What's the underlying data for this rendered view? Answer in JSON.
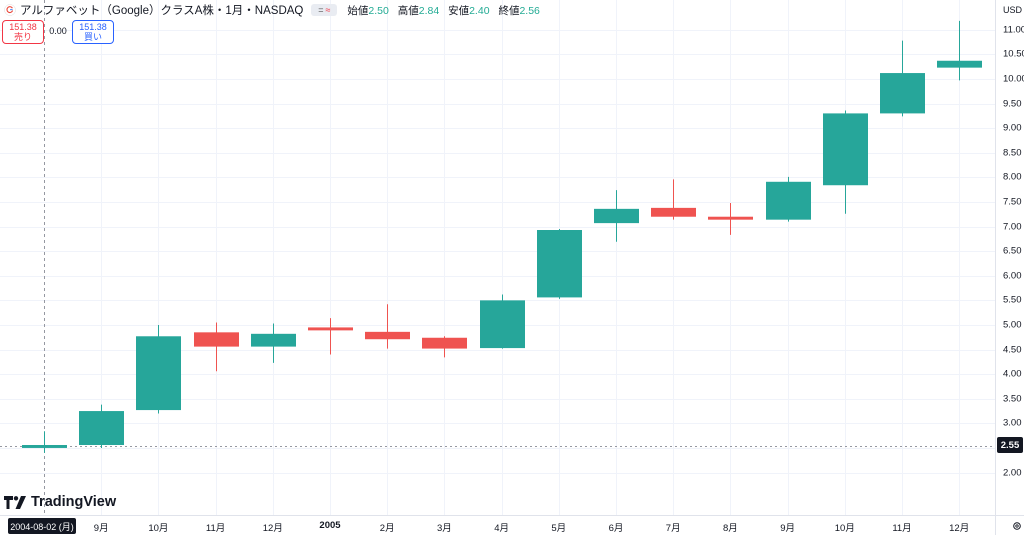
{
  "header": {
    "title": "アルファベット（Google）クラスA株・1月・NASDAQ",
    "chip_symbol": "=",
    "chip_approx": "≈",
    "ohlc": {
      "open_label": "始値",
      "open_value": "2.50",
      "high_label": "高値",
      "high_value": "2.84",
      "low_label": "安値",
      "low_value": "2.40",
      "close_label": "終値",
      "close_value": "2.56"
    }
  },
  "trade": {
    "sell_price": "151.38",
    "sell_label": "売り",
    "spread": "0.00",
    "buy_price": "151.38",
    "buy_label": "買い"
  },
  "brand": {
    "name": "TradingView"
  },
  "axis": {
    "currency": "USD",
    "current_price_label": "2.55",
    "cursor_date_label": "2004-08-02 (月)"
  },
  "colors": {
    "up": "#26a69a",
    "down": "#ef5350",
    "up_text": "#22ab94"
  },
  "chart_data": {
    "type": "candlestick",
    "x_tick_labels": [
      "9月",
      "10月",
      "11月",
      "12月",
      "2005",
      "2月",
      "3月",
      "4月",
      "5月",
      "6月",
      "7月",
      "8月",
      "9月",
      "10月",
      "11月",
      "12月"
    ],
    "y_tick_labels": [
      "2.00",
      "2.50",
      "3.00",
      "3.50",
      "4.00",
      "4.50",
      "5.00",
      "5.50",
      "6.00",
      "6.50",
      "7.00",
      "7.50",
      "8.00",
      "8.50",
      "9.00",
      "9.50",
      "10.00",
      "10.50",
      "11.00"
    ],
    "ylim": [
      1.7,
      11.3
    ],
    "current_price": 2.55,
    "candles": [
      {
        "date": "2004-08",
        "open": 2.5,
        "high": 2.84,
        "low": 2.4,
        "close": 2.56
      },
      {
        "date": "2004-09",
        "open": 2.56,
        "high": 3.38,
        "low": 2.5,
        "close": 3.25
      },
      {
        "date": "2004-10",
        "open": 3.27,
        "high": 5.0,
        "low": 3.2,
        "close": 4.77
      },
      {
        "date": "2004-11",
        "open": 4.85,
        "high": 5.05,
        "low": 4.06,
        "close": 4.56
      },
      {
        "date": "2004-12",
        "open": 4.56,
        "high": 5.03,
        "low": 4.23,
        "close": 4.82
      },
      {
        "date": "2005-01",
        "open": 4.95,
        "high": 5.14,
        "low": 4.4,
        "close": 4.89
      },
      {
        "date": "2005-02",
        "open": 4.86,
        "high": 5.42,
        "low": 4.52,
        "close": 4.71
      },
      {
        "date": "2005-03",
        "open": 4.74,
        "high": 4.77,
        "low": 4.34,
        "close": 4.52
      },
      {
        "date": "2005-04",
        "open": 4.53,
        "high": 5.62,
        "low": 4.52,
        "close": 5.5
      },
      {
        "date": "2005-05",
        "open": 5.56,
        "high": 6.95,
        "low": 5.53,
        "close": 6.93
      },
      {
        "date": "2005-06",
        "open": 7.07,
        "high": 7.74,
        "low": 6.69,
        "close": 7.36
      },
      {
        "date": "2005-07",
        "open": 7.38,
        "high": 7.96,
        "low": 7.14,
        "close": 7.2
      },
      {
        "date": "2005-08",
        "open": 7.2,
        "high": 7.48,
        "low": 6.83,
        "close": 7.14
      },
      {
        "date": "2005-09",
        "open": 7.14,
        "high": 8.01,
        "low": 7.1,
        "close": 7.91
      },
      {
        "date": "2005-10",
        "open": 7.84,
        "high": 9.36,
        "low": 7.26,
        "close": 9.3
      },
      {
        "date": "2005-11",
        "open": 9.3,
        "high": 10.78,
        "low": 9.24,
        "close": 10.12
      },
      {
        "date": "2005-12",
        "open": 10.23,
        "high": 11.18,
        "low": 9.97,
        "close": 10.37
      }
    ]
  }
}
